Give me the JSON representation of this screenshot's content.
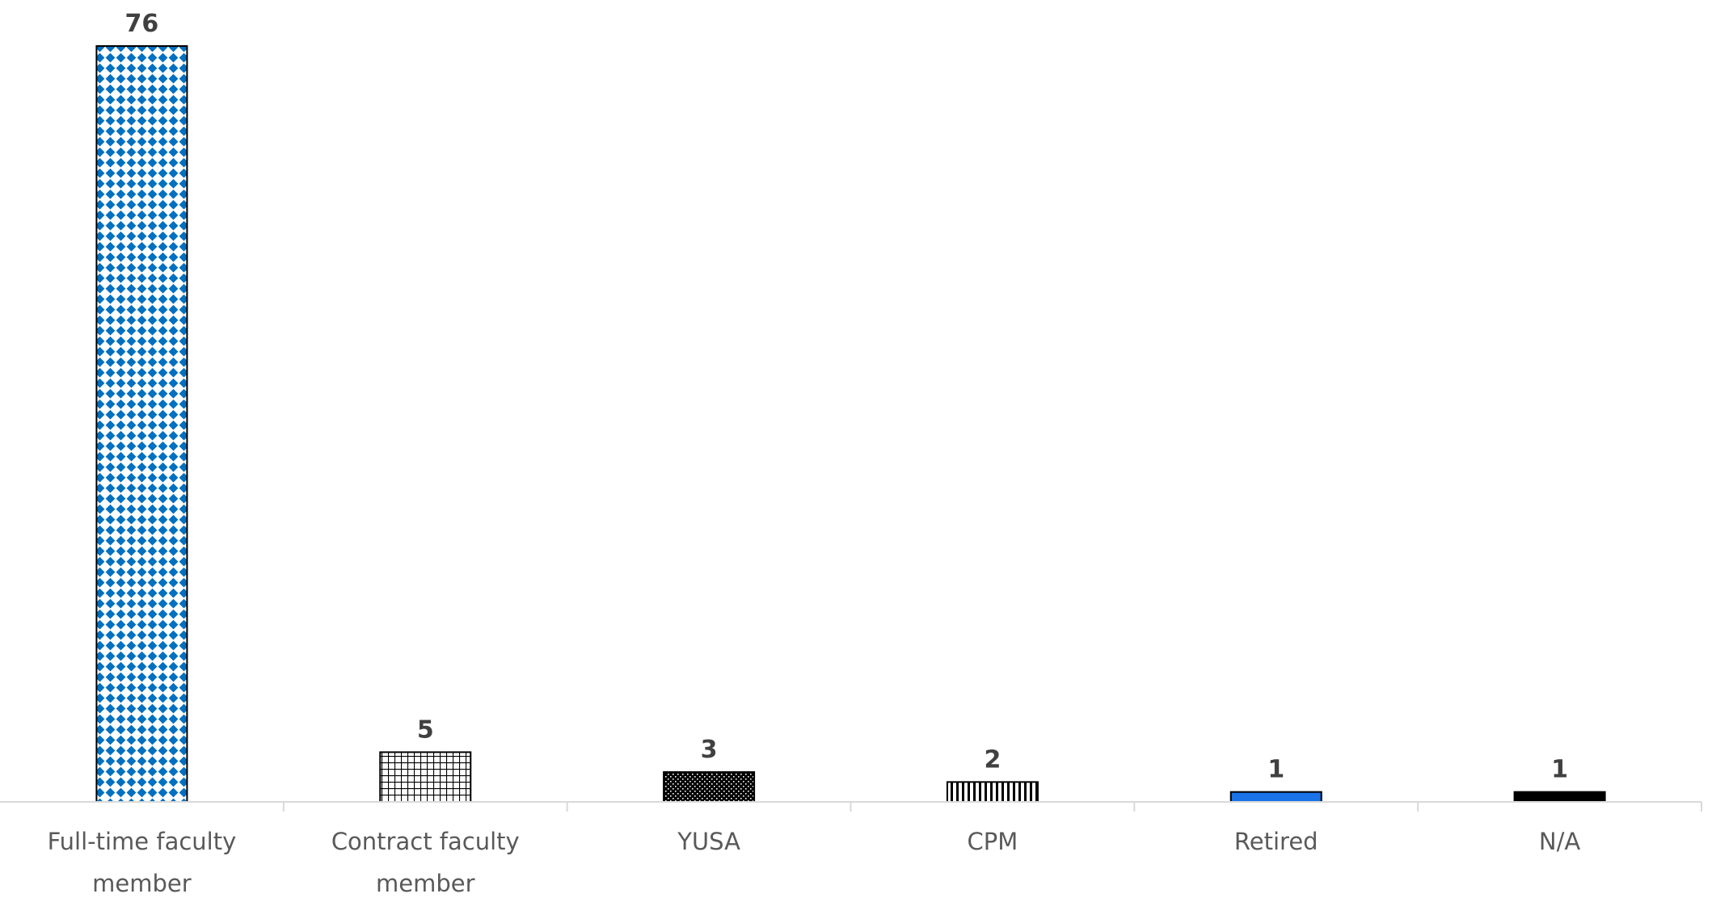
{
  "chart_data": {
    "type": "bar",
    "categories": [
      [
        "Full-time faculty",
        "member"
      ],
      [
        "Contract faculty",
        "member"
      ],
      [
        "YUSA"
      ],
      [
        "CPM"
      ],
      [
        "Retired"
      ],
      [
        "N/A"
      ]
    ],
    "values": [
      76,
      5,
      3,
      2,
      1,
      1
    ],
    "ylim": [
      0,
      76
    ],
    "grid": false,
    "data_labels": [
      "76",
      "5",
      "3",
      "2",
      "1",
      "1"
    ],
    "bar_fills": [
      "blue-diamond-pattern",
      "grid-pattern",
      "black-dotted-pattern",
      "vertical-stripes-pattern",
      "solid-blue",
      "solid-black"
    ],
    "colors": {
      "blue": "#1a73e8",
      "pattern_blue": "#0070c0",
      "black": "#000000",
      "axis": "#d9d9d9",
      "label": "#404040",
      "category_text": "#595959"
    }
  }
}
